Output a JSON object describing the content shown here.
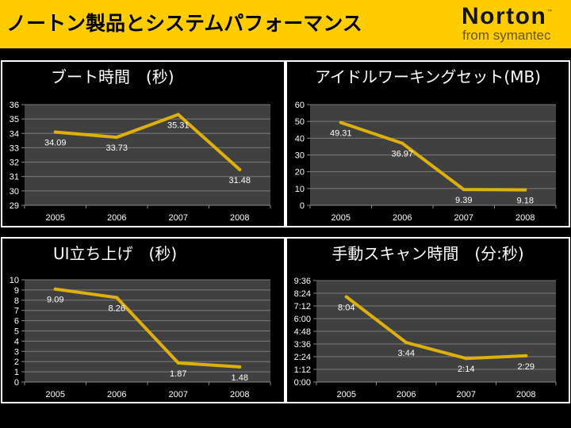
{
  "header": {
    "title": "ノートン製品とシステムパフォーマンス",
    "logo_text": "Norton",
    "logo_tm": "™",
    "logo_tagline": "from symantec"
  },
  "colors": {
    "header_bg": "#FFCC00",
    "page_bg": "#000000",
    "panel_border": "#FFFFFF",
    "plot_bg": "#404040",
    "gridline": "#7A7A7A",
    "axis": "#8A8A8A",
    "series_line": "#DDB00A",
    "text": "#FFFFFF",
    "tagline": "#665518"
  },
  "chart_data": [
    {
      "type": "line",
      "title": "ブート時間　(秒)",
      "xlabel": "",
      "ylabel": "",
      "categories": [
        "2005",
        "2006",
        "2007",
        "2008"
      ],
      "values": [
        34.09,
        33.73,
        35.31,
        31.48
      ],
      "data_labels": [
        "34.09",
        "33.73",
        "35.31",
        "31.48"
      ],
      "ylim": [
        29,
        36
      ],
      "yticks": {
        "values": [
          29,
          30,
          31,
          32,
          33,
          34,
          35,
          36
        ],
        "labels": [
          "29",
          "30",
          "31",
          "32",
          "33",
          "34",
          "35",
          "36"
        ]
      },
      "grid": true,
      "legend": "none"
    },
    {
      "type": "line",
      "title": "アイドルワーキングセット(MB)",
      "xlabel": "",
      "ylabel": "",
      "categories": [
        "2005",
        "2006",
        "2007",
        "2008"
      ],
      "values": [
        49.31,
        36.97,
        9.39,
        9.18
      ],
      "data_labels": [
        "49.31",
        "36.97",
        "9.39",
        "9.18"
      ],
      "ylim": [
        0,
        60
      ],
      "yticks": {
        "values": [
          0,
          10,
          20,
          30,
          40,
          50,
          60
        ],
        "labels": [
          "0",
          "10",
          "20",
          "30",
          "40",
          "50",
          "60"
        ]
      },
      "grid": true,
      "legend": "none"
    },
    {
      "type": "line",
      "title": "UI立ち上げ　(秒)",
      "xlabel": "",
      "ylabel": "",
      "categories": [
        "2005",
        "2006",
        "2007",
        "2008"
      ],
      "values": [
        9.09,
        8.26,
        1.87,
        1.48
      ],
      "data_labels": [
        "9.09",
        "8.26",
        "1.87",
        "1.48"
      ],
      "ylim": [
        0,
        10
      ],
      "yticks": {
        "values": [
          0,
          1,
          2,
          3,
          4,
          5,
          6,
          7,
          8,
          9,
          10
        ],
        "labels": [
          "0",
          "1",
          "2",
          "3",
          "4",
          "5",
          "6",
          "7",
          "8",
          "9",
          "10"
        ]
      },
      "grid": true,
      "legend": "none"
    },
    {
      "type": "line",
      "title": "手動スキャン時間　(分:秒)",
      "xlabel": "",
      "ylabel": "",
      "value_unit": "seconds",
      "categories": [
        "2005",
        "2006",
        "2007",
        "2008"
      ],
      "values": [
        484,
        224,
        134,
        149
      ],
      "data_labels": [
        "8:04",
        "3:44",
        "2:14",
        "2:29"
      ],
      "ylim": [
        0,
        576
      ],
      "yticks": {
        "values": [
          0,
          72,
          144,
          216,
          288,
          360,
          432,
          504,
          576
        ],
        "labels": [
          "0:00",
          "1:12",
          "2:24",
          "3:36",
          "4:48",
          "6:00",
          "7:12",
          "8:24",
          "9:36"
        ]
      },
      "grid": true,
      "legend": "none"
    }
  ]
}
